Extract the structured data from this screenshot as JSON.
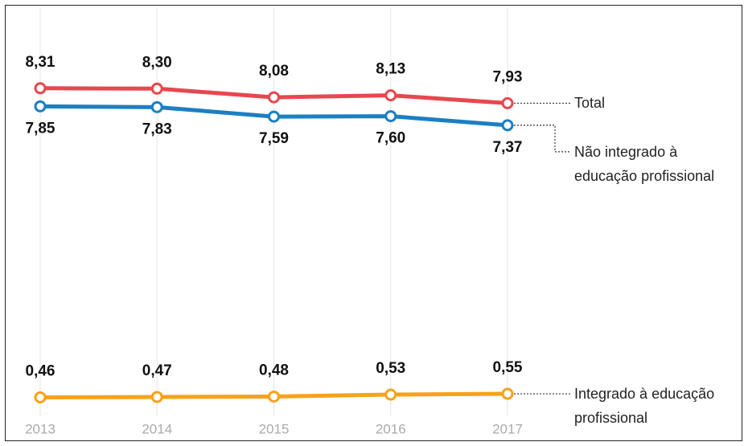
{
  "chart_data": {
    "type": "line",
    "categories": [
      "2013",
      "2014",
      "2015",
      "2016",
      "2017"
    ],
    "series": [
      {
        "name": "Total",
        "color": "#e8474f",
        "values": [
          8.31,
          8.3,
          8.08,
          8.13,
          7.93
        ],
        "value_labels": [
          "8,31",
          "8,30",
          "8,08",
          "8,13",
          "7,93"
        ],
        "label_side": "above"
      },
      {
        "name": "Não integrado à educação profissional",
        "color": "#1b7fc4",
        "values": [
          7.85,
          7.83,
          7.59,
          7.6,
          7.37
        ],
        "value_labels": [
          "7,85",
          "7,83",
          "7,59",
          "7,60",
          "7,37"
        ],
        "label_side": "below"
      },
      {
        "name": "Integrado à educação profissional",
        "color": "#f7a21b",
        "values": [
          0.46,
          0.47,
          0.48,
          0.53,
          0.55
        ],
        "value_labels": [
          "0,46",
          "0,47",
          "0,48",
          "0,53",
          "0,55"
        ],
        "label_side": "above"
      }
    ],
    "ylim": [
      0,
      10
    ],
    "grid": true
  }
}
